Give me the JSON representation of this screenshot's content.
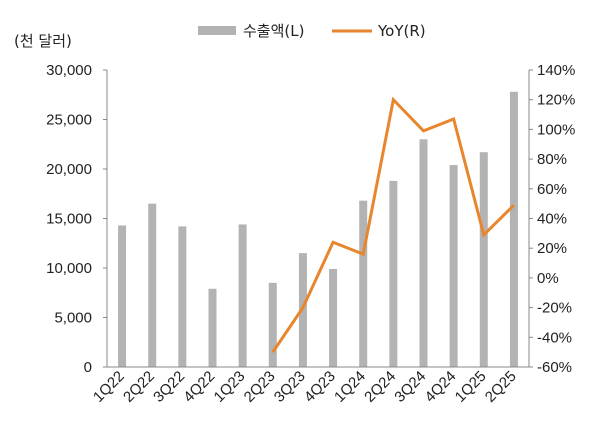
{
  "chart_data": {
    "type": "bar",
    "unit_label": "(천 달러)",
    "categories": [
      "1Q22",
      "2Q22",
      "3Q22",
      "4Q22",
      "1Q23",
      "2Q23",
      "3Q23",
      "4Q23",
      "1Q24",
      "2Q24",
      "3Q24",
      "4Q24",
      "1Q25",
      "2Q25"
    ],
    "series": [
      {
        "name": "수출액(L)",
        "type": "bar",
        "axis": "left",
        "color": "#b3b3b3",
        "values": [
          14300,
          16500,
          14200,
          7900,
          14400,
          8500,
          11500,
          9900,
          16800,
          18800,
          23000,
          20400,
          21700,
          27800
        ]
      },
      {
        "name": "YoY(R)",
        "type": "line",
        "axis": "right",
        "color": "#e8862e",
        "values": [
          null,
          null,
          null,
          null,
          null,
          -50,
          -20,
          24,
          16,
          120,
          99,
          107,
          29,
          49
        ]
      }
    ],
    "y_left": {
      "min": 0,
      "max": 30000,
      "step": 5000,
      "ticks": [
        "0",
        "5,000",
        "10,000",
        "15,000",
        "20,000",
        "25,000",
        "30,000"
      ]
    },
    "y_right": {
      "min": -60,
      "max": 140,
      "step": 20,
      "ticks": [
        "-60%",
        "-40%",
        "-20%",
        "0%",
        "20%",
        "40%",
        "60%",
        "80%",
        "100%",
        "120%",
        "140%"
      ]
    },
    "legend_position": "top",
    "grid": false
  }
}
